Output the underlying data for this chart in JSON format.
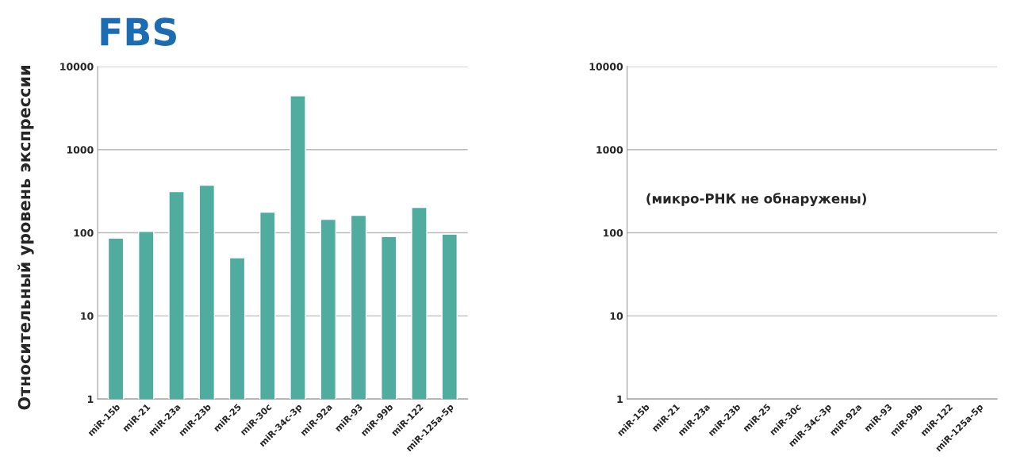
{
  "chart_data": [
    {
      "type": "bar",
      "title": "FBS",
      "ylabel": "Относительный уровень экспрессии",
      "categories": [
        "miR-15b",
        "miR-21",
        "miR-23a",
        "miR-23b",
        "miR-25",
        "miR-30c",
        "miR-34c-3p",
        "miR-92a",
        "miR-93",
        "miR-99b",
        "miR-122",
        "miR-125a-5p"
      ],
      "values": [
        86,
        104,
        313,
        373,
        50,
        177,
        4440,
        145,
        162,
        90,
        202,
        96
      ],
      "color": "#4fac9f",
      "log": true,
      "ylim": [
        1,
        10000
      ],
      "yticks": [
        1,
        10,
        100,
        1000,
        10000
      ],
      "grid": "y"
    },
    {
      "type": "bar",
      "categories": [
        "miR-15b",
        "miR-21",
        "miR-23a",
        "miR-23b",
        "miR-25",
        "miR-30c",
        "miR-34c-3p",
        "miR-92a",
        "miR-93",
        "miR-99b",
        "miR-122",
        "miR-125a-5p"
      ],
      "values": [
        null,
        null,
        null,
        null,
        null,
        null,
        null,
        null,
        null,
        null,
        null,
        null
      ],
      "color": "#4fac9f",
      "log": true,
      "ylim": [
        1,
        10000
      ],
      "yticks": [
        1,
        10,
        100,
        1000,
        10000
      ],
      "grid": "y",
      "annotations": [
        "(микро-РНК не обнаружены)"
      ]
    }
  ]
}
